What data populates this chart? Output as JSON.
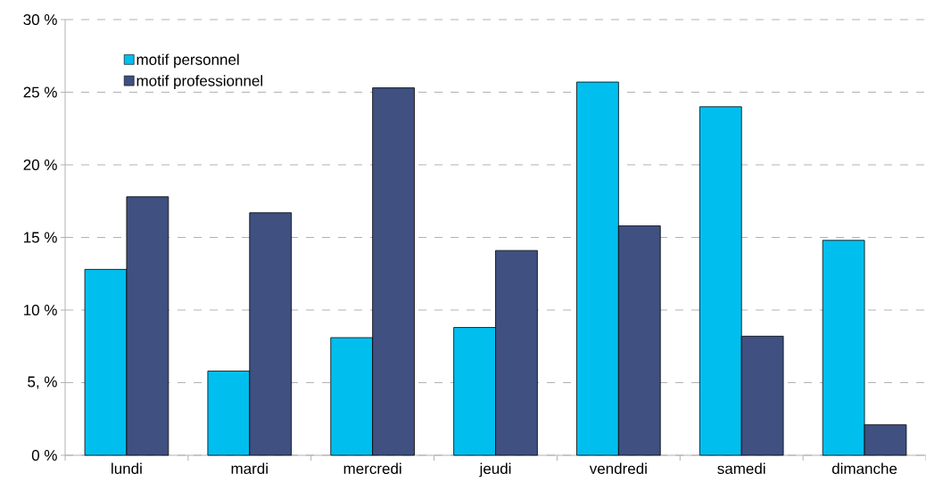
{
  "chart_data": {
    "type": "bar",
    "categories": [
      "lundi",
      "mardi",
      "mercredi",
      "jeudi",
      "vendredi",
      "samedi",
      "dimanche"
    ],
    "series": [
      {
        "name": "motif personnel",
        "color": "#00bfef",
        "values": [
          12.8,
          5.8,
          8.1,
          8.8,
          25.7,
          24.0,
          14.8
        ]
      },
      {
        "name": "motif professionnel",
        "color": "#3f5081",
        "values": [
          17.8,
          16.7,
          25.3,
          14.1,
          15.8,
          8.2,
          2.1
        ]
      }
    ],
    "ylim": [
      0,
      30
    ],
    "yticks": [
      {
        "value": 0,
        "label": "0 %"
      },
      {
        "value": 5,
        "label": "5, %"
      },
      {
        "value": 10,
        "label": "10 %"
      },
      {
        "value": 15,
        "label": "15 %"
      },
      {
        "value": 20,
        "label": "20 %"
      },
      {
        "value": 25,
        "label": "25 %"
      },
      {
        "value": 30,
        "label": "30 %"
      }
    ],
    "grid": "y",
    "legend": "top left"
  }
}
